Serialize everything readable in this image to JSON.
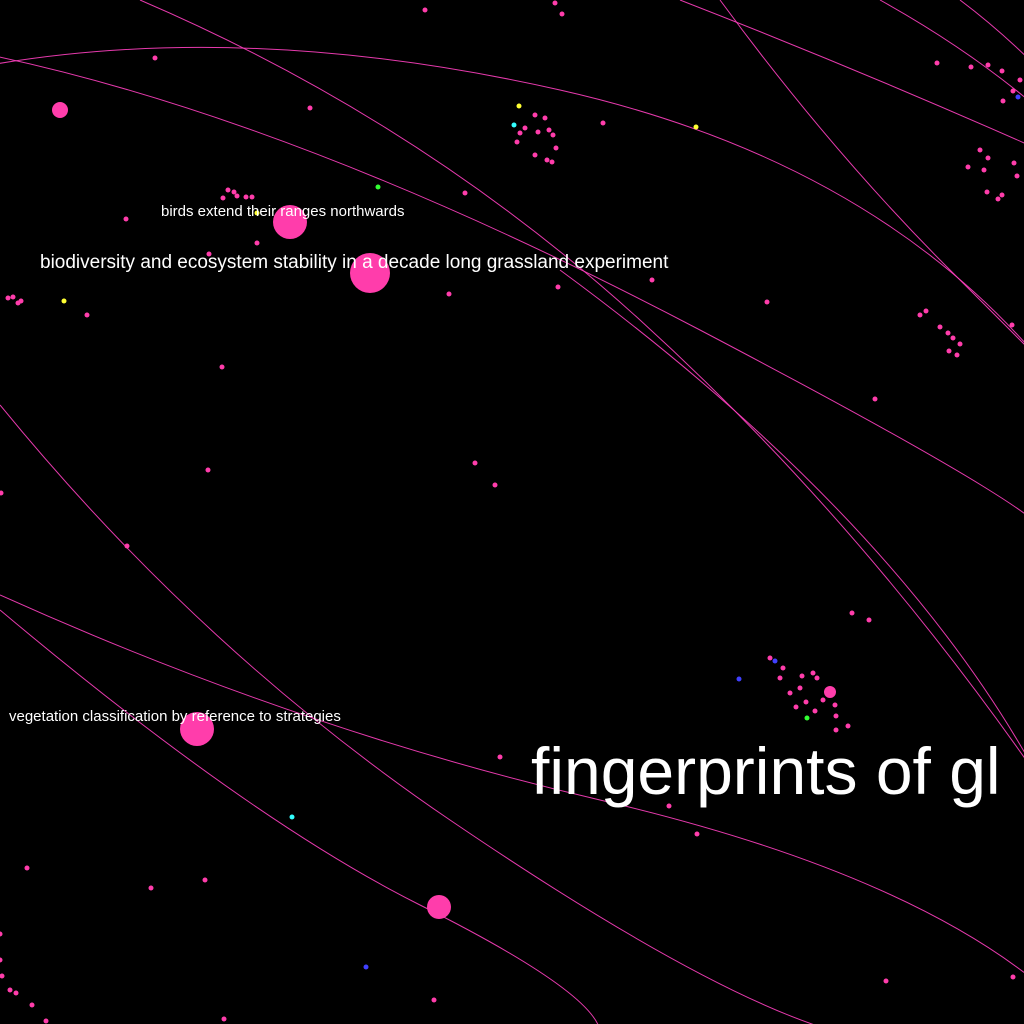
{
  "colors": {
    "background": "#000000",
    "link": "#ff40c0",
    "node_primary": "#ff3dab",
    "node_yellow": "#ffff33",
    "node_cyan": "#33ffff",
    "node_green": "#33ff33",
    "node_blue": "#4040ff",
    "label_text": "#ffffff"
  },
  "labels": {
    "birds": "birds extend their ranges northwards",
    "biodiversity": "biodiversity and ecosystem stability in a decade long grassland experiment",
    "vegetation": "vegetation classification by reference to strategies",
    "fingerprints": "fingerprints of gl"
  }
}
